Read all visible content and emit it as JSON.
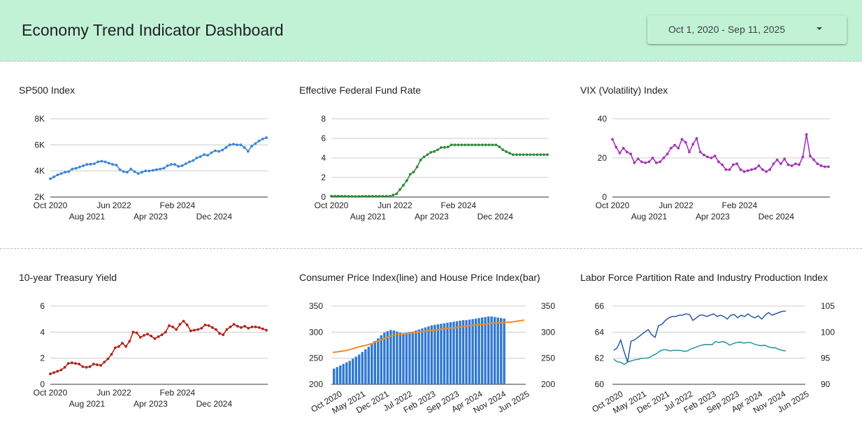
{
  "header": {
    "title": "Economy Trend Indicator Dashboard",
    "date_range": "Oct 1, 2020 - Sep 11, 2025"
  },
  "chart_data": [
    {
      "type": "line",
      "title": "SP500 Index",
      "x_ticks_upper": [
        "Oct 2020",
        "Jun 2022",
        "Feb 2024"
      ],
      "x_ticks_lower": [
        "Aug 2021",
        "Apr 2023",
        "Dec 2024"
      ],
      "y_ticks": [
        "2K",
        "4K",
        "6K",
        "8K"
      ],
      "ylim": [
        2000,
        8000
      ],
      "area_fill": true,
      "trendline": true,
      "colors": {
        "series": "#3a84d6",
        "trend": "#f08c2a",
        "fill": "#d6e6f9"
      },
      "series": [
        {
          "values": [
            3400,
            3550,
            3700,
            3800,
            3900,
            3950,
            4150,
            4200,
            4300,
            4400,
            4500,
            4520,
            4550,
            4700,
            4750,
            4700,
            4600,
            4500,
            4450,
            4100,
            3950,
            3900,
            4150,
            3950,
            3800,
            3900,
            4000,
            4000,
            4050,
            4100,
            4150,
            4200,
            4400,
            4500,
            4500,
            4350,
            4400,
            4550,
            4700,
            4800,
            5000,
            5100,
            5250,
            5200,
            5400,
            5550,
            5500,
            5600,
            5800,
            6000,
            6050,
            6000,
            6000,
            5800,
            5500,
            5900,
            6100,
            6300,
            6450,
            6550
          ]
        }
      ]
    },
    {
      "type": "line",
      "title": "Effective Federal Fund Rate",
      "x_ticks_upper": [
        "Oct 2020",
        "Jun 2022",
        "Feb 2024"
      ],
      "x_ticks_lower": [
        "Aug 2021",
        "Apr 2023",
        "Dec 2024"
      ],
      "y_ticks": [
        "0",
        "2",
        "4",
        "6",
        "8"
      ],
      "ylim": [
        0,
        8
      ],
      "area_fill": true,
      "trendline": true,
      "colors": {
        "series": "#2e8b3a",
        "trend": "#f08c2a",
        "fill": "#d8ecd6"
      },
      "series": [
        {
          "values": [
            0.09,
            0.09,
            0.09,
            0.09,
            0.08,
            0.07,
            0.07,
            0.06,
            0.06,
            0.08,
            0.08,
            0.08,
            0.08,
            0.08,
            0.08,
            0.08,
            0.08,
            0.08,
            0.2,
            0.33,
            0.77,
            1.21,
            1.68,
            2.33,
            2.56,
            3.08,
            3.78,
            4.1,
            4.33,
            4.57,
            4.65,
            4.83,
            5.06,
            5.08,
            5.12,
            5.33,
            5.33,
            5.33,
            5.33,
            5.33,
            5.33,
            5.33,
            5.33,
            5.33,
            5.33,
            5.33,
            5.33,
            5.33,
            5.33,
            5.13,
            4.83,
            4.64,
            4.48,
            4.33,
            4.33,
            4.33,
            4.33,
            4.33,
            4.33,
            4.33,
            4.33,
            4.33,
            4.33,
            4.33
          ]
        }
      ]
    },
    {
      "type": "line",
      "title": "VIX (Volatility) Index",
      "x_ticks_upper": [
        "Oct 2020",
        "Jun 2022",
        "Feb 2024"
      ],
      "x_ticks_lower": [
        "Aug 2021",
        "Apr 2023",
        "Dec 2024"
      ],
      "y_ticks": [
        "0",
        "20",
        "40"
      ],
      "ylim": [
        0,
        40
      ],
      "area_fill": true,
      "trendline": true,
      "colors": {
        "series": "#a335b8",
        "trend": "#f08c2a",
        "fill": "#eedff2"
      },
      "series": [
        {
          "values": [
            29.5,
            25.5,
            22.5,
            25,
            23,
            22,
            17.5,
            19.5,
            18,
            17.5,
            18,
            20,
            17.5,
            18,
            20,
            22,
            25,
            26.5,
            25,
            29.5,
            28,
            23,
            27,
            30,
            23,
            21.5,
            20.5,
            20,
            21,
            18,
            16.5,
            14,
            14,
            16.5,
            17,
            14,
            13,
            13.5,
            14,
            14.5,
            16,
            14,
            13,
            14,
            17,
            19,
            17,
            19.5,
            16.5,
            16,
            17,
            16.5,
            20.5,
            32,
            21,
            19,
            17,
            16,
            15.5,
            15.5
          ]
        }
      ]
    },
    {
      "type": "line",
      "title": "10-year Treasury Yield",
      "x_ticks_upper": [
        "Oct 2020",
        "Jun 2022",
        "Feb 2024"
      ],
      "x_ticks_lower": [
        "Aug 2021",
        "Apr 2023",
        "Dec 2024"
      ],
      "y_ticks": [
        "0",
        "2",
        "4",
        "6"
      ],
      "ylim": [
        0,
        6
      ],
      "area_fill": true,
      "trendline": true,
      "colors": {
        "series": "#b3241c",
        "trend": "#f08c2a",
        "fill": "#f3d3d0"
      },
      "series": [
        {
          "values": [
            0.8,
            0.9,
            1.0,
            1.1,
            1.3,
            1.6,
            1.65,
            1.6,
            1.55,
            1.35,
            1.3,
            1.35,
            1.55,
            1.5,
            1.45,
            1.7,
            1.95,
            2.3,
            2.8,
            2.9,
            3.15,
            2.9,
            3.3,
            4.0,
            3.95,
            3.6,
            3.75,
            3.85,
            3.7,
            3.5,
            3.65,
            3.8,
            4.0,
            4.5,
            4.4,
            4.2,
            4.6,
            4.85,
            4.55,
            4.1,
            4.15,
            4.2,
            4.3,
            4.55,
            4.5,
            4.35,
            4.2,
            3.9,
            3.8,
            4.2,
            4.4,
            4.6,
            4.45,
            4.35,
            4.45,
            4.3,
            4.4,
            4.4,
            4.35,
            4.25,
            4.15
          ]
        }
      ]
    },
    {
      "type": "bar",
      "title": "Consumer Price Index(line) and House Price Index(bar)",
      "x_ticks": [
        "Oct 2020",
        "May 2021",
        "Dec 2021",
        "Jul 2022",
        "Feb 2023",
        "Sep 2023",
        "Apr 2024",
        "Nov 2024",
        "Jun 2025"
      ],
      "y_ticks_left": [
        "200",
        "250",
        "300",
        "350"
      ],
      "y_ticks_right": [
        "200",
        "250",
        "300",
        "350"
      ],
      "ylim": [
        200,
        350
      ],
      "colors": {
        "bar": "#2f78d0",
        "line": "#f08c2a"
      },
      "bar_series": [
        {
          "values": [
            230,
            233,
            236,
            239,
            242,
            245,
            249,
            253,
            257,
            262,
            267,
            272,
            278,
            283,
            288,
            294,
            299,
            302,
            304,
            303,
            301,
            299,
            298,
            299,
            300,
            301,
            303,
            305,
            307,
            309,
            311,
            313,
            314,
            315,
            316,
            317,
            318,
            319,
            320,
            321,
            322,
            323,
            323,
            324,
            325,
            326,
            327,
            328,
            329,
            330,
            330,
            329,
            328,
            327,
            326
          ]
        }
      ],
      "line_series": [
        {
          "values": [
            261,
            262,
            263,
            264,
            265,
            267,
            269,
            271,
            273,
            274,
            276,
            278,
            281,
            283,
            286,
            289,
            292,
            294,
            296,
            296,
            297,
            297,
            298,
            299,
            300,
            301,
            302,
            303,
            303,
            304,
            305,
            306,
            307,
            308,
            308,
            309,
            310,
            311,
            312,
            313,
            313,
            314,
            315,
            315,
            316,
            317,
            317,
            318,
            318,
            319,
            319,
            320,
            321,
            322,
            323
          ]
        }
      ]
    },
    {
      "type": "line",
      "title": "Labor Force Partition Rate and Industry Production Index",
      "x_ticks": [
        "Oct 2020",
        "May 2021",
        "Dec 2021",
        "Jul 2022",
        "Feb 2023",
        "Sep 2023",
        "Apr 2024",
        "Nov 2024",
        "Jun 2025"
      ],
      "y_ticks_left": [
        "60",
        "62",
        "64",
        "66"
      ],
      "y_ticks_right": [
        "90",
        "95",
        "100",
        "105"
      ],
      "ylim_left": [
        60,
        66
      ],
      "ylim_right": [
        90,
        105
      ],
      "colors": {
        "series_1": "#1c4fa0",
        "series_2": "#1a8a9c"
      },
      "series": [
        {
          "axis": "left",
          "values": [
            62.6,
            62.8,
            63.4,
            62.5,
            61.7,
            63.3,
            63.4,
            63.6,
            63.8,
            64.0,
            64.2,
            63.8,
            63.6,
            64.5,
            64.6,
            64.9,
            65.1,
            65.2,
            65.2,
            65.3,
            65.3,
            65.4,
            65.35,
            64.9,
            65.1,
            65.3,
            65.3,
            65.2,
            65.3,
            65.4,
            65.2,
            65.3,
            65.2,
            65.0,
            65.3,
            65.35,
            65.1,
            65.3,
            65.2,
            65.4,
            65.2,
            65.1,
            65.25,
            65.0,
            65.3,
            65.5,
            65.3,
            65.4,
            65.5,
            65.6,
            65.6
          ]
        },
        {
          "axis": "right",
          "values": [
            94.8,
            94.3,
            94.2,
            93.8,
            94.3,
            94.5,
            94.7,
            94.8,
            95.0,
            95.0,
            95.1,
            95.5,
            95.8,
            96.3,
            96.6,
            96.6,
            96.4,
            96.5,
            96.5,
            96.5,
            96.3,
            96.4,
            96.8,
            97.0,
            97.3,
            97.5,
            97.6,
            97.6,
            97.6,
            98.2,
            98.0,
            98.2,
            98.0,
            97.5,
            97.8,
            98.0,
            98.1,
            97.9,
            98.0,
            98.0,
            97.7,
            97.5,
            97.4,
            97.5,
            97.2,
            97.0,
            97.0,
            96.7,
            96.5,
            96.4
          ]
        }
      ]
    }
  ]
}
